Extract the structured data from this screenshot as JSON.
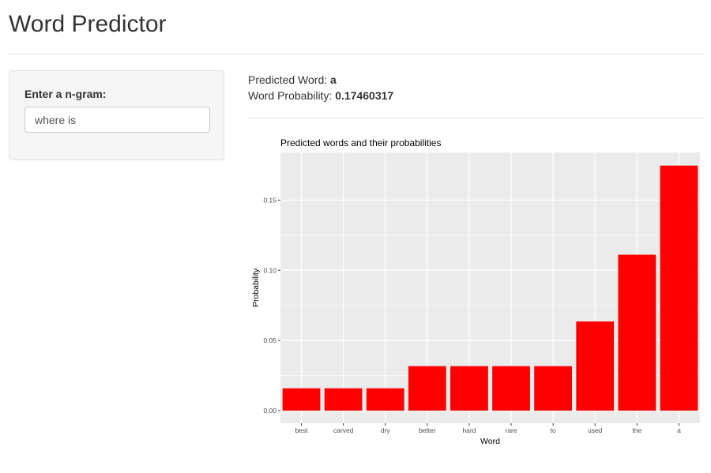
{
  "title": "Word Predictor",
  "input": {
    "label": "Enter a n-gram:",
    "value": "where is"
  },
  "output": {
    "word_label": "Predicted Word: ",
    "word": "a",
    "prob_label": "Word Probability: ",
    "prob": "0.17460317"
  },
  "chart_data": {
    "type": "bar",
    "title": "Predicted words and their probabilities",
    "xlabel": "Word",
    "ylabel": "Probability",
    "categories": [
      "best",
      "carved",
      "dry",
      "better",
      "hard",
      "rare",
      "to",
      "used",
      "the",
      "a"
    ],
    "values": [
      0.0159,
      0.0159,
      0.0159,
      0.0317,
      0.0317,
      0.0317,
      0.0317,
      0.0635,
      0.1111,
      0.1746
    ],
    "yticks": [
      "0.00",
      "0.05",
      "0.10",
      "0.15"
    ],
    "ylim": [
      -0.009,
      0.184
    ],
    "bar_color": "#ff0000",
    "panel_color": "#ebebeb",
    "grid": true
  }
}
